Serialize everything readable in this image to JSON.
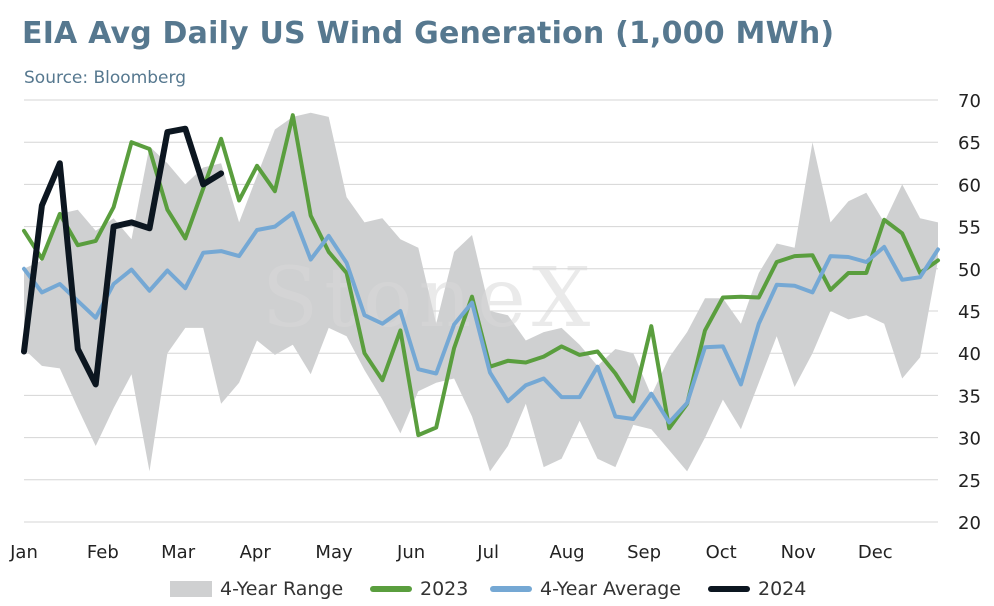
{
  "header": {
    "title": "EIA Avg Daily US Wind Generation (1,000 MWh)",
    "subtitle": "Source: Bloomberg"
  },
  "watermark": "StoneX",
  "colors": {
    "range": "#cfd0d1",
    "y2023": "#5a9e3e",
    "avg": "#75a8d4",
    "y2024": "#0c1620",
    "grid": "#d5d5d5"
  },
  "chart_data": {
    "type": "line",
    "title": "EIA Avg Daily US Wind Generation (1,000 MWh)",
    "xlabel": "",
    "ylabel": "",
    "ylim": [
      20,
      70
    ],
    "yticks": [
      20,
      25,
      30,
      35,
      40,
      45,
      50,
      55,
      60,
      65,
      70
    ],
    "y_axis_side": "right",
    "grid": "horizontal",
    "legend_position": "bottom",
    "x_labels": [
      "Jan",
      "Feb",
      "Mar",
      "Apr",
      "May",
      "Jun",
      "Jul",
      "Aug",
      "Sep",
      "Oct",
      "Nov",
      "Dec"
    ],
    "x_unit": "week of year (1-52)",
    "series": [
      {
        "name": "4-Year Range",
        "kind": "range",
        "x": [
          1,
          2,
          3,
          4,
          5,
          6,
          7,
          8,
          9,
          10,
          11,
          12,
          13,
          14,
          15,
          16,
          17,
          18,
          19,
          20,
          21,
          22,
          23,
          24,
          25,
          26,
          27,
          28,
          29,
          30,
          31,
          32,
          33,
          34,
          35,
          36,
          37,
          38,
          39,
          40,
          41,
          42,
          43,
          44,
          45,
          46,
          47,
          48,
          49,
          50,
          51,
          52
        ],
        "low": [
          40.5,
          38.5,
          38.2,
          33.5,
          29.0,
          33.5,
          37.5,
          26.0,
          40.0,
          43.0,
          43.0,
          34.0,
          36.5,
          41.5,
          39.8,
          41.0,
          37.5,
          43.0,
          42.0,
          38.0,
          34.5,
          30.5,
          35.5,
          36.5,
          37.0,
          32.5,
          26.0,
          29.0,
          34.0,
          26.5,
          27.5,
          32.0,
          27.5,
          26.5,
          31.5,
          31.0,
          28.5,
          26.0,
          30.0,
          34.5,
          31.0,
          36.5,
          42.0,
          36.0,
          40.0,
          45.0,
          44.0,
          44.5,
          43.5,
          37.0,
          39.5,
          51.0
        ],
        "high": [
          50.0,
          51.0,
          56.5,
          57.0,
          54.5,
          56.0,
          53.5,
          64.5,
          62.5,
          60.0,
          62.0,
          62.5,
          55.5,
          61.0,
          66.5,
          68.0,
          68.5,
          68.0,
          58.5,
          55.5,
          56.0,
          53.5,
          52.5,
          43.5,
          52.0,
          54.0,
          45.0,
          44.5,
          41.5,
          42.5,
          43.0,
          41.0,
          38.5,
          40.5,
          40.0,
          35.0,
          39.5,
          42.5,
          46.5,
          46.5,
          43.5,
          49.5,
          53.0,
          52.5,
          65.0,
          55.5,
          58.0,
          59.0,
          55.5,
          60.0,
          56.0,
          55.5
        ]
      },
      {
        "name": "2023",
        "x": [
          1,
          2,
          3,
          4,
          5,
          6,
          7,
          8,
          9,
          10,
          11,
          12,
          13,
          14,
          15,
          16,
          17,
          18,
          19,
          20,
          21,
          22,
          23,
          24,
          25,
          26,
          27,
          28,
          29,
          30,
          31,
          32,
          33,
          34,
          35,
          36,
          37,
          38,
          39,
          40,
          41,
          42,
          43,
          44,
          45,
          46,
          47,
          48,
          49,
          50,
          51,
          52
        ],
        "values": [
          54.5,
          51.2,
          56.5,
          52.8,
          53.3,
          57.3,
          65.0,
          64.2,
          57.0,
          53.6,
          59.5,
          65.4,
          58.1,
          62.2,
          59.2,
          68.2,
          56.3,
          52.0,
          49.5,
          40.0,
          36.8,
          42.7,
          30.3,
          31.2,
          40.6,
          46.7,
          38.4,
          39.1,
          38.9,
          39.6,
          40.8,
          39.8,
          40.2,
          37.6,
          34.3,
          43.2,
          31.1,
          34.0,
          42.7,
          46.6,
          46.7,
          46.6,
          50.8,
          51.5,
          51.6,
          47.5,
          49.5,
          49.5,
          55.8,
          54.2,
          49.5,
          51.0
        ]
      },
      {
        "name": "4-Year Average",
        "x": [
          1,
          2,
          3,
          4,
          5,
          6,
          7,
          8,
          9,
          10,
          11,
          12,
          13,
          14,
          15,
          16,
          17,
          18,
          19,
          20,
          21,
          22,
          23,
          24,
          25,
          26,
          27,
          28,
          29,
          30,
          31,
          32,
          33,
          34,
          35,
          36,
          37,
          38,
          39,
          40,
          41,
          42,
          43,
          44,
          45,
          46,
          47,
          48,
          49,
          50,
          51,
          52
        ],
        "values": [
          50.0,
          47.2,
          48.2,
          46.2,
          44.2,
          48.2,
          49.9,
          47.4,
          49.8,
          47.7,
          51.9,
          52.1,
          51.5,
          54.6,
          55.0,
          56.6,
          51.1,
          53.9,
          50.7,
          44.5,
          43.5,
          45.0,
          38.1,
          37.6,
          43.4,
          46.0,
          37.7,
          34.3,
          36.2,
          37.0,
          34.8,
          34.8,
          38.4,
          32.5,
          32.2,
          35.2,
          31.8,
          34.1,
          40.7,
          40.8,
          36.3,
          43.5,
          48.1,
          48.0,
          47.2,
          51.5,
          51.4,
          50.8,
          52.6,
          48.7,
          49.0,
          52.3
        ]
      },
      {
        "name": "2024",
        "x": [
          1,
          2,
          3,
          4,
          5,
          6,
          7,
          8,
          9,
          10,
          11,
          12,
          13
        ],
        "values": [
          40.2,
          57.5,
          62.5,
          40.5,
          36.3,
          55.0,
          55.5,
          54.8,
          66.2,
          66.6,
          60.0,
          61.3,
          null
        ]
      }
    ]
  }
}
